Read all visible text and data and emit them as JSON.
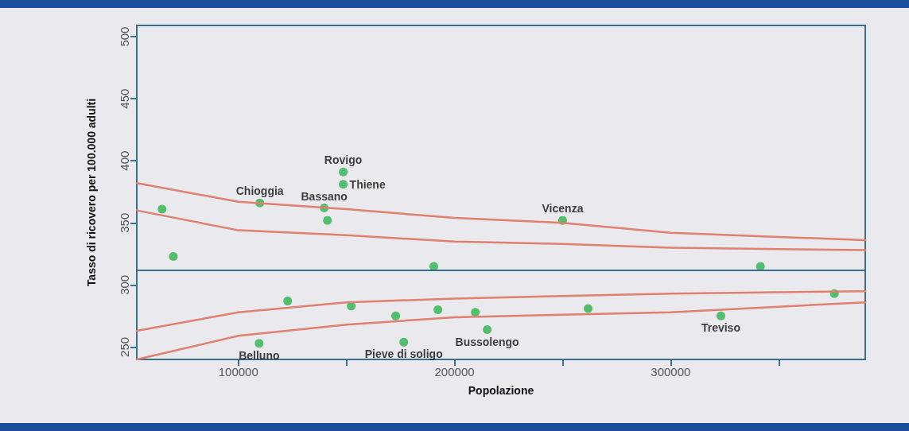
{
  "chart_data": {
    "type": "scatter",
    "xlabel": "Popolazione",
    "ylabel": "Tasso di ricovero per 100.000 adulti",
    "xlim": [
      53000,
      390000
    ],
    "ylim": [
      240,
      509
    ],
    "xticks": [
      100000,
      {
        "value": 150000,
        "label": null
      },
      200000,
      {
        "value": 250000,
        "label": null
      },
      300000,
      {
        "value": 350000,
        "label": null
      }
    ],
    "yticks": [
      250,
      300,
      350,
      400,
      450,
      500
    ],
    "grid": false,
    "series": [
      {
        "color": "#2db34a",
        "marker": "circle",
        "x": [
          64700,
          69900,
          109900,
          122800,
          109600,
          139700,
          141200,
          148500,
          148500,
          152200,
          172800,
          176500,
          190400,
          192300,
          209600,
          215100,
          250000,
          261800,
          323200,
          341500,
          375700
        ],
        "values": [
          361,
          323,
          366,
          287,
          253,
          362,
          352,
          391,
          381,
          283,
          275,
          254,
          315,
          280,
          278,
          264,
          352,
          281,
          275,
          315,
          293
        ]
      },
      {
        "type": "line",
        "color": "#e0806e",
        "marker": "none",
        "x": [
          53000,
          100000,
          150000,
          200000,
          250000,
          300000,
          390000
        ],
        "values": [
          382,
          367,
          361,
          354,
          350,
          342,
          336
        ]
      },
      {
        "type": "line",
        "color": "#e0806e",
        "marker": "none",
        "x": [
          53000,
          100000,
          150000,
          200000,
          250000,
          300000,
          390000
        ],
        "values": [
          360,
          344,
          340,
          335,
          333,
          330,
          328
        ]
      },
      {
        "type": "line",
        "color": "#e0806e",
        "marker": "none",
        "x": [
          53000,
          100000,
          150000,
          200000,
          250000,
          300000,
          390000
        ],
        "values": [
          263,
          278,
          286,
          289,
          291,
          293,
          295
        ]
      },
      {
        "type": "line",
        "color": "#e0806e",
        "marker": "none",
        "x": [
          53000,
          100000,
          150000,
          200000,
          250000,
          300000,
          390000
        ],
        "values": [
          240,
          259,
          268,
          274,
          276,
          278,
          286
        ]
      }
    ],
    "ref_lines": [
      {
        "axis": "y",
        "value": 312,
        "color": "#3a6e8e"
      }
    ],
    "annotations": [
      {
        "text": "Rovigo",
        "x": 148500,
        "y": 391
      },
      {
        "text": "Thiene",
        "x": 148500,
        "y": 381
      },
      {
        "text": "Chioggia",
        "x": 109900,
        "y": 366
      },
      {
        "text": "Bassano",
        "x": 139700,
        "y": 362
      },
      {
        "text": "Vicenza",
        "x": 250000,
        "y": 352
      },
      {
        "text": "Belluno",
        "x": 109600,
        "y": 253
      },
      {
        "text": "Pieve di soligo",
        "x": 176500,
        "y": 254
      },
      {
        "text": "Bussolengo",
        "x": 215100,
        "y": 264
      },
      {
        "text": "Treviso",
        "x": 323200,
        "y": 275
      }
    ]
  }
}
